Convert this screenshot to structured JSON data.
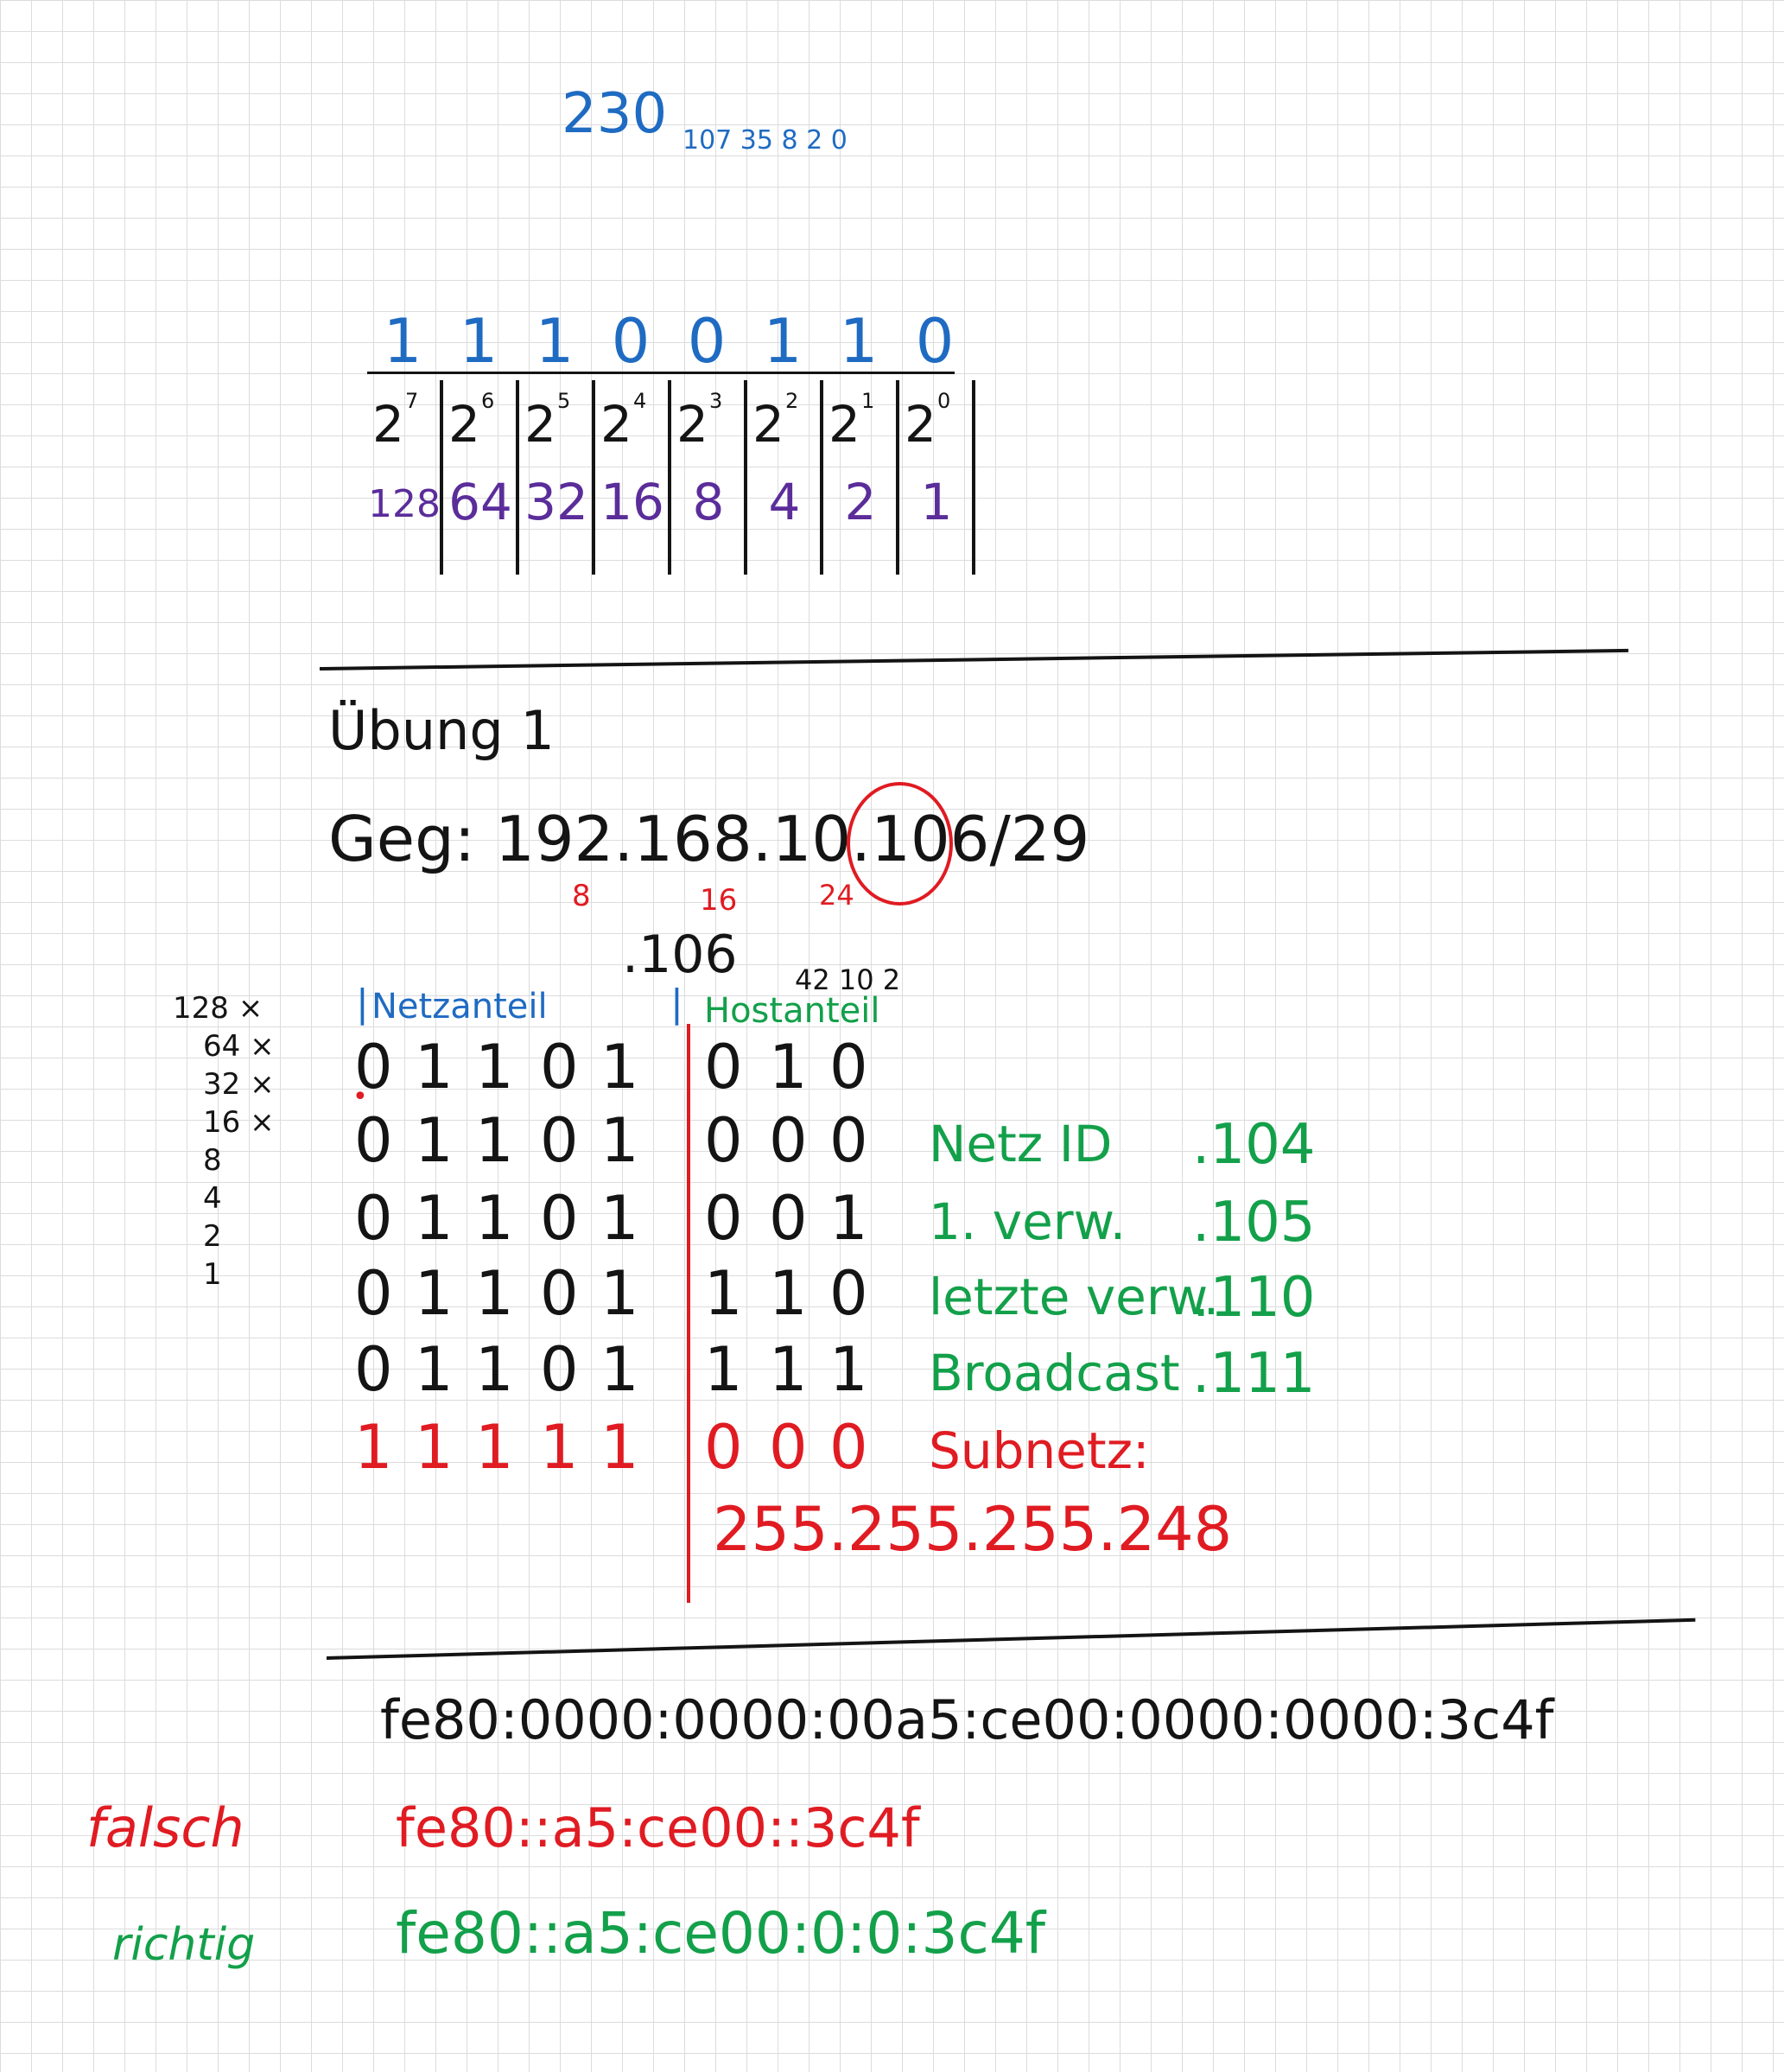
{
  "top": {
    "value": "230",
    "scratch": "107 35 8 2 0"
  },
  "bits_table": {
    "bits": [
      "1",
      "1",
      "1",
      "0",
      "0",
      "1",
      "1",
      "0"
    ],
    "exponents": [
      "7",
      "6",
      "5",
      "4",
      "3",
      "2",
      "1",
      "0"
    ],
    "weights": [
      "128",
      "64",
      "32",
      "16",
      "8",
      "4",
      "2",
      "1"
    ]
  },
  "uebung": {
    "title": "Übung 1",
    "given": "Geg: 192.168.10.106/29",
    "markers": [
      "8",
      "16",
      "24"
    ],
    "octet_label": ".106",
    "octet_scratch": "42 10 2",
    "left_scratch": [
      "128 ×",
      "64 ×",
      "32 ×",
      "16 ×",
      "8",
      "4",
      "2",
      "1"
    ],
    "netz_label": "Netzanteil",
    "host_label": "Hostanteil",
    "rows": [
      {
        "net": [
          "0",
          "1",
          "1",
          "0",
          "1"
        ],
        "host": [
          "0",
          "1",
          "0"
        ],
        "label": "",
        "value": ""
      },
      {
        "net": [
          "0",
          "1",
          "1",
          "0",
          "1"
        ],
        "host": [
          "0",
          "0",
          "0"
        ],
        "label": "Netz ID",
        "value": ".104"
      },
      {
        "net": [
          "0",
          "1",
          "1",
          "0",
          "1"
        ],
        "host": [
          "0",
          "0",
          "1"
        ],
        "label": "1. verw.",
        "value": ".105"
      },
      {
        "net": [
          "0",
          "1",
          "1",
          "0",
          "1"
        ],
        "host": [
          "1",
          "1",
          "0"
        ],
        "label": "letzte verw.",
        "value": ".110"
      },
      {
        "net": [
          "0",
          "1",
          "1",
          "0",
          "1"
        ],
        "host": [
          "1",
          "1",
          "1"
        ],
        "label": "Broadcast",
        "value": ".111"
      },
      {
        "net": [
          "1",
          "1",
          "1",
          "1",
          "1"
        ],
        "host": [
          "0",
          "0",
          "0"
        ],
        "label": "Subnetz:",
        "value": ""
      }
    ],
    "subnet_mask": "255.255.255.248"
  },
  "ipv6": {
    "full": "fe80:0000:0000:00a5:ce00:0000:0000:3c4f",
    "wrong_label": "falsch",
    "wrong": "fe80::a5:ce00::3c4f",
    "right_label": "richtig",
    "right": "fe80::a5:ce00:0:0:3c4f"
  },
  "colors": {
    "blue": "#1f6bc2",
    "purple": "#5b2d9a",
    "black": "#141414",
    "red": "#e01b22",
    "green": "#13a04a",
    "grid": "#dcdcdc"
  }
}
